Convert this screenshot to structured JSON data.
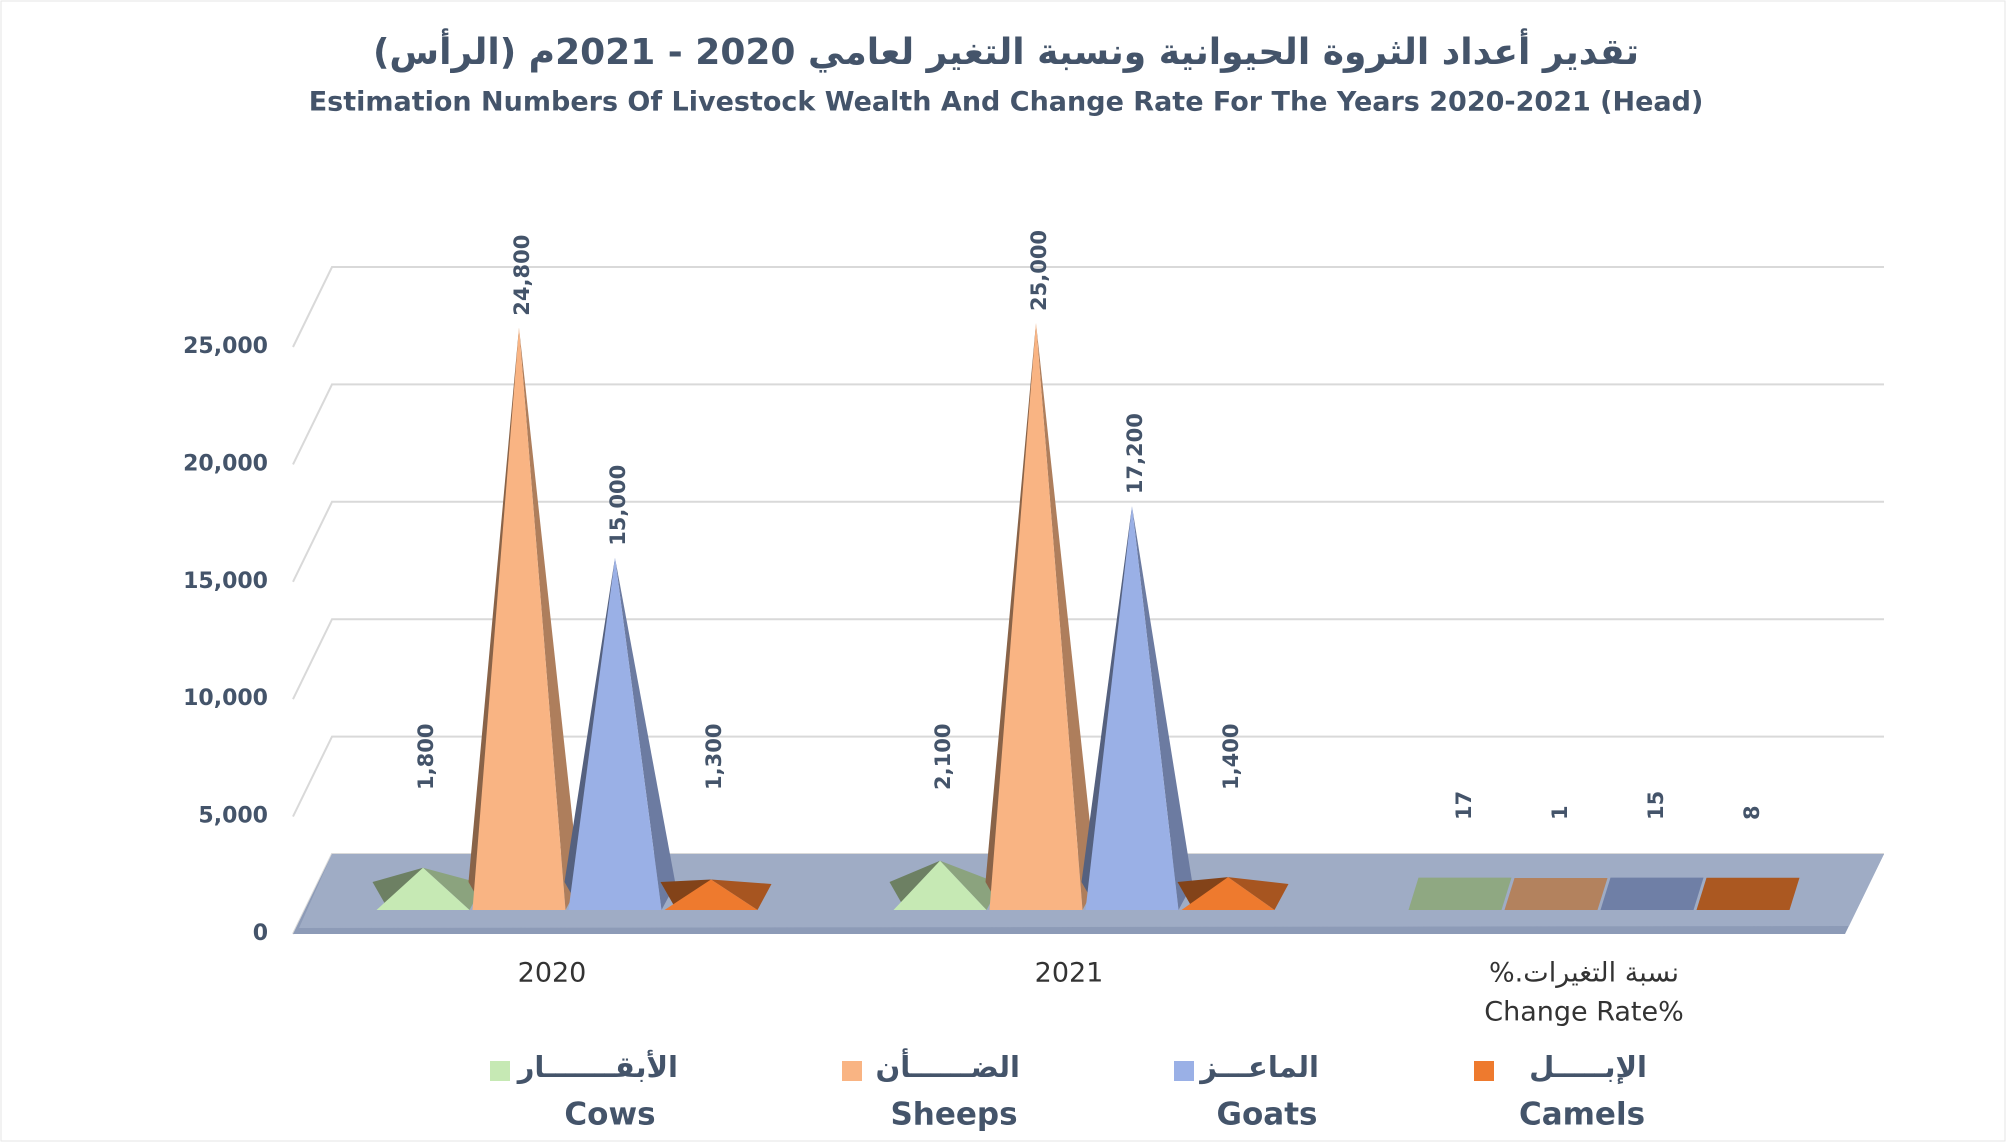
{
  "chart_data": {
    "type": "pyramid3d",
    "title": "تقدير أعداد الثروة الحيوانية ونسبة التغير لعامي 2020 - 2021م (الرأس)",
    "subtitle": "Estimation Numbers Of Livestock Wealth And Change Rate For The Years 2020-2021 (Head)",
    "categories": [
      "2020",
      "2021",
      [
        "%.نسبة التغيرات",
        "Change Rate%"
      ]
    ],
    "series": [
      {
        "name": "Cows",
        "name_ar": "الأبقـــــــار",
        "color": "#c6e9b4",
        "values": [
          1800,
          2100,
          17
        ],
        "value_labels": [
          "1,800",
          "2,100",
          "17"
        ]
      },
      {
        "name": "Sheeps",
        "name_ar": "الضــــــأن",
        "color": "#f9b483",
        "values": [
          24800,
          25000,
          1
        ],
        "value_labels": [
          "24,800",
          "25,000",
          "1"
        ]
      },
      {
        "name": "Goats",
        "name_ar": "الماعـــز",
        "color": "#9ab0e6",
        "values": [
          15000,
          17200,
          15
        ],
        "value_labels": [
          "15,000",
          "17,200",
          "15"
        ]
      },
      {
        "name": "Camels",
        "name_ar": "الإبـــــل",
        "color": "#ee7a2e",
        "values": [
          1300,
          1400,
          8
        ],
        "value_labels": [
          "1,300",
          "1,400",
          "8"
        ]
      }
    ],
    "ylim": [
      0,
      25000
    ],
    "yticks": [
      0,
      {
        "value": 5000,
        "label": "5,000"
      },
      {
        "value": 10000,
        "label": "10,000"
      },
      {
        "value": 15000,
        "label": "15,000"
      },
      {
        "value": 20000,
        "label": "20,000"
      },
      {
        "value": 25000,
        "label": "25,000"
      }
    ],
    "grid": true
  }
}
